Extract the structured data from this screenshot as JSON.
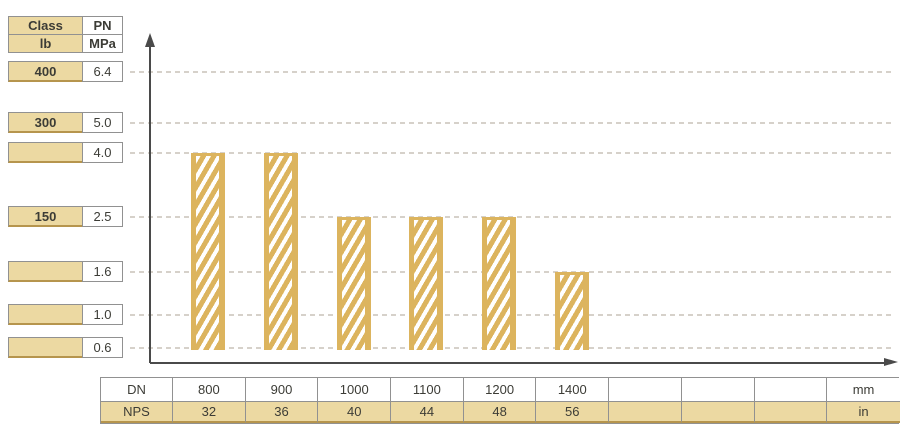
{
  "left_table": {
    "headers": [
      {
        "class": "Class",
        "pn": "PN"
      },
      {
        "class": "lb",
        "pn": "MPa"
      }
    ],
    "rows": [
      {
        "class": "400",
        "pn": "6.4"
      },
      {
        "class": "300",
        "pn": "5.0"
      },
      {
        "class": "",
        "pn": "4.0"
      },
      {
        "class": "150",
        "pn": "2.5"
      },
      {
        "class": "",
        "pn": "1.6"
      },
      {
        "class": "",
        "pn": "1.0"
      },
      {
        "class": "",
        "pn": "0.6"
      }
    ]
  },
  "chart_data": {
    "type": "bar",
    "categories": [
      "800",
      "900",
      "1000",
      "1100",
      "1200",
      "1400"
    ],
    "values": [
      4.0,
      4.0,
      2.5,
      2.5,
      2.5,
      1.6
    ],
    "xlabel": "DN",
    "ylabel": "PN",
    "value_unit": "MPa",
    "pressure_levels": [
      6.4,
      5.0,
      4.0,
      2.5,
      1.6,
      1.0,
      0.6
    ],
    "class_equivalents": {
      "6.4": "400",
      "5.0": "300",
      "2.5": "150"
    },
    "grid": "dashed horizontal",
    "legend": "none",
    "bar_style": "gold with white diagonal hatch"
  },
  "bottom_table": {
    "rows": [
      {
        "label": "DN",
        "cells": [
          "800",
          "900",
          "1000",
          "1100",
          "1200",
          "1400",
          "",
          "",
          ""
        ],
        "unit": "mm"
      },
      {
        "label": "NPS",
        "cells": [
          "32",
          "36",
          "40",
          "44",
          "48",
          "56",
          "",
          "",
          ""
        ],
        "unit": "in"
      }
    ]
  },
  "colors": {
    "bar": "#dcb45e",
    "tan_fill": "#ecd9a2",
    "grid_dash": "#d6d1ca",
    "border_gray": "#919191",
    "border_gold": "#b6954d",
    "text": "#3c3c36",
    "axis": "#4a4a4a"
  }
}
